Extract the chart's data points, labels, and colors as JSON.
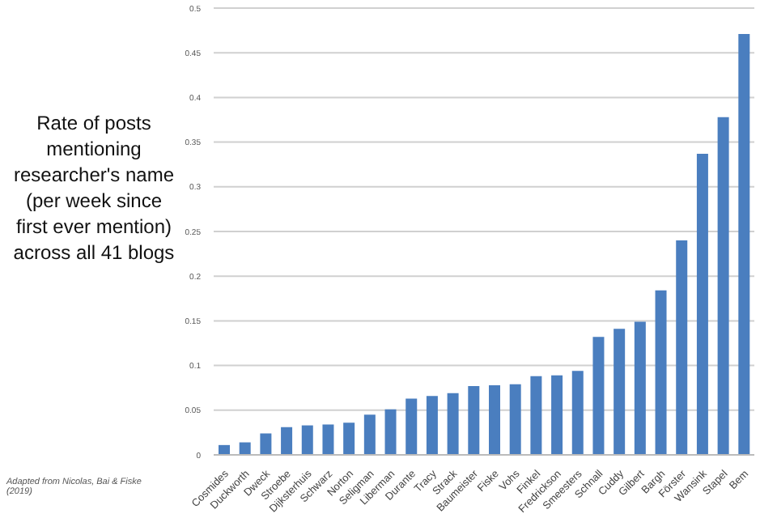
{
  "chart_data": {
    "type": "bar",
    "ylabel": "Rate of posts mentioning researcher's name (per week since first ever mention) across all 41 blogs",
    "categories": [
      "Cosmides",
      "Duckworth",
      "Dweck",
      "Stroebe",
      "Dijksterhuis",
      "Schwarz",
      "Norton",
      "Seligman",
      "Liberman",
      "Durante",
      "Tracy",
      "Strack",
      "Baumeister",
      "Fiske",
      "Vohs",
      "Finkel",
      "Fredrickson",
      "Smeesters",
      "Schnall",
      "Cuddy",
      "Gilbert",
      "Bargh",
      "Förster",
      "Wansink",
      "Stapel",
      "Bem"
    ],
    "values": [
      0.011,
      0.014,
      0.024,
      0.031,
      0.033,
      0.034,
      0.036,
      0.045,
      0.051,
      0.063,
      0.066,
      0.069,
      0.077,
      0.078,
      0.079,
      0.088,
      0.089,
      0.094,
      0.132,
      0.141,
      0.149,
      0.184,
      0.24,
      0.337,
      0.378,
      0.471
    ],
    "color": "#4a7ebf",
    "ylim": [
      0,
      0.5
    ],
    "yticks": [
      0,
      0.05,
      0.1,
      0.15,
      0.2,
      0.25,
      0.3,
      0.35,
      0.4,
      0.45,
      0.5
    ],
    "grid": "y",
    "annotations": [
      "Adapted from Nicolas, Bai & Fiske (2019)"
    ]
  }
}
